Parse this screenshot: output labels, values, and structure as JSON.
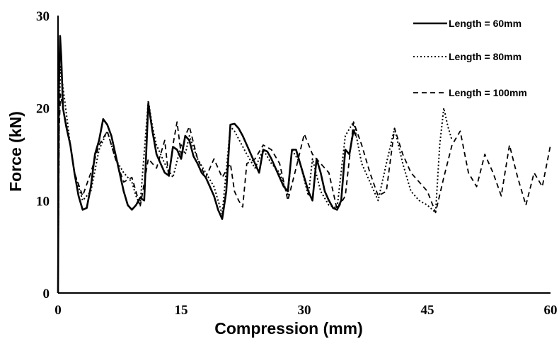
{
  "chart_data": {
    "type": "line",
    "title": "",
    "xlabel": "Compression (mm)",
    "ylabel": "Force (kN)",
    "xlim": [
      0,
      60
    ],
    "ylim": [
      0,
      30
    ],
    "xticks": [
      "0",
      "15",
      "30",
      "45",
      "60"
    ],
    "yticks": [
      "0",
      "10",
      "20",
      "30"
    ],
    "grid": false,
    "legend_position": "top-right",
    "series": [
      {
        "name": "Length = 60mm",
        "style": "solid",
        "points": [
          [
            0,
            0
          ],
          [
            0.1,
            22
          ],
          [
            0.25,
            27.8
          ],
          [
            0.4,
            25.5
          ],
          [
            0.6,
            20
          ],
          [
            1,
            18
          ],
          [
            1.5,
            16
          ],
          [
            2,
            13
          ],
          [
            2.5,
            10.5
          ],
          [
            3,
            9
          ],
          [
            3.5,
            9.2
          ],
          [
            4,
            11.5
          ],
          [
            4.5,
            15
          ],
          [
            5,
            16.5
          ],
          [
            5.5,
            18.8
          ],
          [
            6,
            18.2
          ],
          [
            6.5,
            17
          ],
          [
            7,
            15
          ],
          [
            7.5,
            13
          ],
          [
            8,
            11
          ],
          [
            8.5,
            9.5
          ],
          [
            9,
            9
          ],
          [
            9.5,
            9.5
          ],
          [
            10,
            10.3
          ],
          [
            10.5,
            10
          ],
          [
            11,
            20.5
          ],
          [
            11.5,
            17.5
          ],
          [
            12,
            15
          ],
          [
            12.5,
            14
          ],
          [
            13,
            13
          ],
          [
            13.5,
            12.7
          ],
          [
            14,
            15.8
          ],
          [
            14.5,
            15.5
          ],
          [
            15,
            14.5
          ],
          [
            15.5,
            17
          ],
          [
            16,
            16.5
          ],
          [
            16.5,
            14.8
          ],
          [
            17,
            14
          ],
          [
            17.5,
            13
          ],
          [
            18,
            12.5
          ],
          [
            18.5,
            11.5
          ],
          [
            19,
            10.5
          ],
          [
            19.5,
            9
          ],
          [
            20,
            8
          ],
          [
            20.5,
            11
          ],
          [
            21,
            18.2
          ],
          [
            21.5,
            18.3
          ],
          [
            22,
            17.8
          ],
          [
            22.5,
            17
          ],
          [
            23,
            16
          ],
          [
            23.5,
            15
          ],
          [
            24,
            14
          ],
          [
            24.5,
            13
          ],
          [
            25,
            15.5
          ],
          [
            25.5,
            15.3
          ],
          [
            26,
            14.5
          ],
          [
            26.5,
            13.5
          ],
          [
            27,
            12.5
          ],
          [
            27.5,
            11.5
          ],
          [
            28,
            11
          ],
          [
            28.5,
            15.5
          ],
          [
            29,
            15.5
          ],
          [
            29.5,
            14
          ],
          [
            30,
            12.5
          ],
          [
            30.5,
            11
          ],
          [
            31,
            10
          ],
          [
            31.5,
            14.5
          ],
          [
            32,
            13
          ],
          [
            32.5,
            11
          ],
          [
            33,
            10
          ],
          [
            33.5,
            9.2
          ],
          [
            34,
            9
          ],
          [
            34.5,
            10
          ],
          [
            35,
            15.5
          ],
          [
            35.5,
            15
          ],
          [
            36,
            17.6
          ],
          [
            36.3,
            17
          ]
        ]
      },
      {
        "name": "Length = 80mm",
        "style": "dotted",
        "points": [
          [
            0,
            0
          ],
          [
            0.15,
            20
          ],
          [
            0.3,
            24.5
          ],
          [
            0.5,
            23
          ],
          [
            1,
            19.5
          ],
          [
            1.5,
            16
          ],
          [
            2,
            13
          ],
          [
            3,
            10
          ],
          [
            4,
            11
          ],
          [
            5,
            15.5
          ],
          [
            6,
            17.5
          ],
          [
            7,
            14.5
          ],
          [
            8,
            13
          ],
          [
            9,
            12
          ],
          [
            9.5,
            10.5
          ],
          [
            10,
            9.5
          ],
          [
            11,
            20.8
          ],
          [
            11.5,
            18
          ],
          [
            12,
            16
          ],
          [
            13,
            14
          ],
          [
            14,
            12.5
          ],
          [
            15,
            16
          ],
          [
            15.5,
            15
          ],
          [
            16,
            17
          ],
          [
            17,
            14.5
          ],
          [
            18,
            13
          ],
          [
            19,
            11.5
          ],
          [
            20,
            8.5
          ],
          [
            21,
            18
          ],
          [
            21.5,
            17.5
          ],
          [
            23,
            15
          ],
          [
            24,
            13.5
          ],
          [
            25,
            15.5
          ],
          [
            26,
            14
          ],
          [
            27,
            13
          ],
          [
            28,
            10.5
          ],
          [
            28.5,
            15.5
          ],
          [
            29.5,
            14
          ],
          [
            30.5,
            10.5
          ],
          [
            31,
            14.5
          ],
          [
            32,
            11
          ],
          [
            33,
            9.5
          ],
          [
            34,
            9.2
          ],
          [
            35,
            17
          ],
          [
            36,
            18.5
          ],
          [
            37,
            14
          ],
          [
            38,
            12
          ],
          [
            39,
            10
          ],
          [
            40,
            14
          ],
          [
            41,
            17.8
          ],
          [
            42,
            14
          ],
          [
            43,
            11
          ],
          [
            44,
            10
          ],
          [
            45,
            9.5
          ],
          [
            46,
            8.7
          ],
          [
            46.5,
            16
          ],
          [
            47,
            20
          ],
          [
            47.5,
            18
          ],
          [
            48,
            16.5
          ]
        ]
      },
      {
        "name": "Length = 100mm",
        "style": "dashed",
        "points": [
          [
            0,
            0
          ],
          [
            0.15,
            18
          ],
          [
            0.3,
            21.5
          ],
          [
            0.6,
            20
          ],
          [
            1.5,
            16
          ],
          [
            2,
            13
          ],
          [
            3,
            10.5
          ],
          [
            4,
            13
          ],
          [
            5,
            16
          ],
          [
            6,
            17.5
          ],
          [
            7,
            14.5
          ],
          [
            8,
            12
          ],
          [
            9,
            12.5
          ],
          [
            9.5,
            11
          ],
          [
            10,
            9.3
          ],
          [
            11,
            14.5
          ],
          [
            12,
            13.5
          ],
          [
            13,
            16.5
          ],
          [
            13.5,
            12.5
          ],
          [
            14,
            16
          ],
          [
            14.5,
            18.5
          ],
          [
            15,
            15
          ],
          [
            15.5,
            17
          ],
          [
            16,
            18
          ],
          [
            17,
            14.5
          ],
          [
            18,
            12.5
          ],
          [
            19,
            14.5
          ],
          [
            20,
            12.5
          ],
          [
            21,
            14
          ],
          [
            21.5,
            11
          ],
          [
            22,
            10
          ],
          [
            22.5,
            9.3
          ],
          [
            23,
            14
          ],
          [
            24,
            14.5
          ],
          [
            25,
            16
          ],
          [
            26,
            15.5
          ],
          [
            27,
            14
          ],
          [
            28,
            10
          ],
          [
            29,
            13.5
          ],
          [
            30,
            17.2
          ],
          [
            31,
            15
          ],
          [
            32,
            14
          ],
          [
            33,
            13
          ],
          [
            34,
            9
          ],
          [
            35,
            10.5
          ],
          [
            36,
            18.5
          ],
          [
            37,
            16
          ],
          [
            38,
            13
          ],
          [
            39,
            10.5
          ],
          [
            40,
            11
          ],
          [
            41,
            17.8
          ],
          [
            42,
            15
          ],
          [
            43,
            13
          ],
          [
            44,
            12
          ],
          [
            45,
            11
          ],
          [
            46,
            8.7
          ],
          [
            47,
            12.5
          ],
          [
            48,
            16
          ],
          [
            49,
            17.5
          ],
          [
            50,
            13
          ],
          [
            51,
            11.5
          ],
          [
            52,
            15
          ],
          [
            53,
            13
          ],
          [
            54,
            10.5
          ],
          [
            55,
            16
          ],
          [
            56,
            12.5
          ],
          [
            57,
            9.5
          ],
          [
            58,
            13
          ],
          [
            59,
            11.5
          ],
          [
            60,
            16
          ]
        ]
      }
    ]
  }
}
